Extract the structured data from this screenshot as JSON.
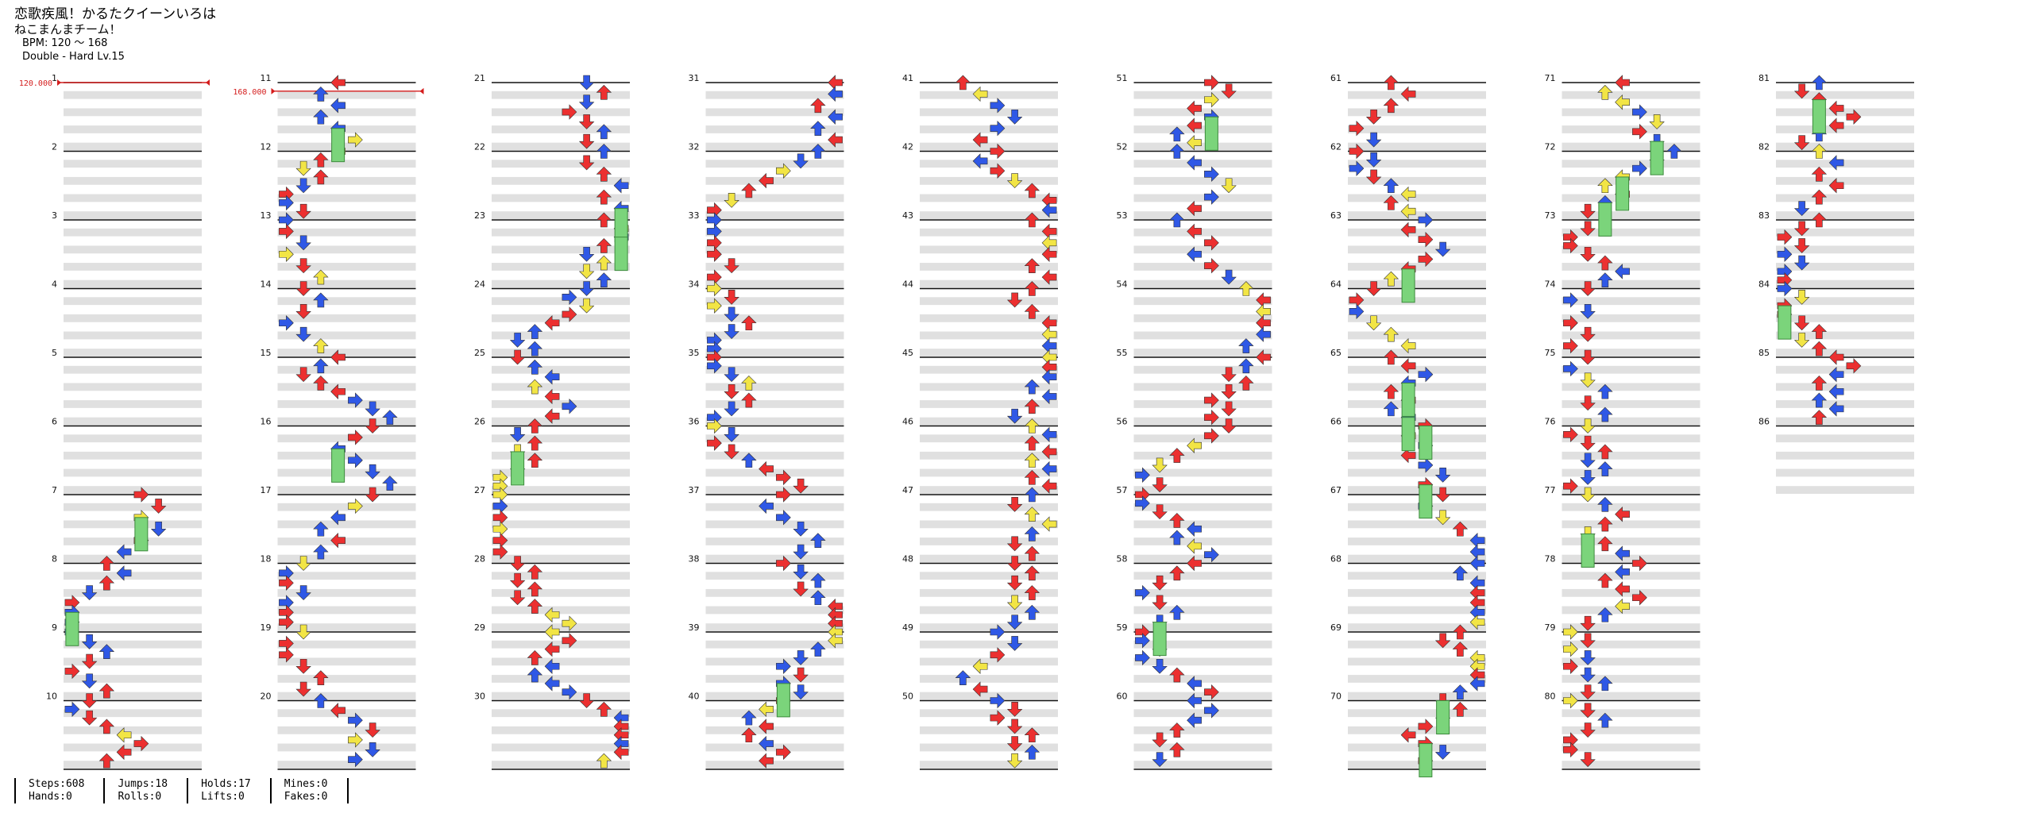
{
  "song": {
    "title": "恋歌疾風！かるたクイーンいろは",
    "artist": "ねこまんまチーム！",
    "bpm_line": "BPM: 120 ～ 168",
    "difficulty_line": "Double - Hard Lv.15"
  },
  "bpm_markers": [
    {
      "label": "120.000",
      "measure": 1
    },
    {
      "label": "168.000",
      "measure": 11
    }
  ],
  "measures": {
    "first": 1,
    "last": 86
  },
  "colors": {
    "quarter": "#ec3030",
    "eighth": "#2f58e6",
    "sixteenth": "#f2e545",
    "other": "#a040e8",
    "hold": "#7bd47b",
    "stripe": "#e0e0e0",
    "bpm": "#d41c1c"
  },
  "stats": {
    "steps": "Steps:608",
    "jumps": "Jumps:18",
    "holds": "Holds:17",
    "mines": "Mines:0",
    "hands": "Hands:0",
    "rolls": "Rolls:0",
    "lifts": "Lifts:0",
    "fakes": "Fakes:0"
  }
}
